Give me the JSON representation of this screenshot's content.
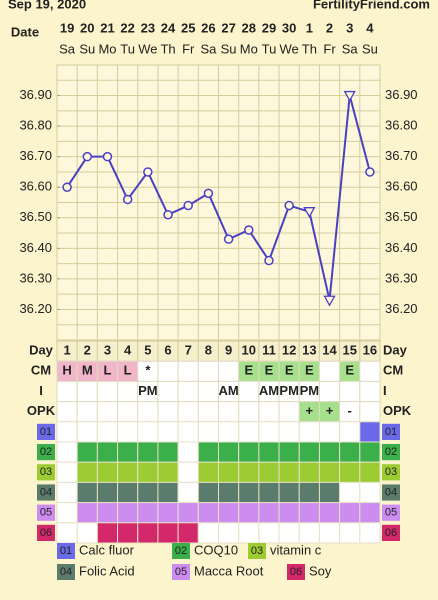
{
  "header": {
    "date": "Sep 19, 2020",
    "site": "FertilityFriend.com"
  },
  "chart_data": {
    "type": "line",
    "date_label": "Date",
    "categories": [
      "19",
      "20",
      "21",
      "22",
      "23",
      "24",
      "25",
      "26",
      "27",
      "28",
      "29",
      "30",
      "1",
      "2",
      "3",
      "4"
    ],
    "weekdays": [
      "Sa",
      "Su",
      "Mo",
      "Tu",
      "We",
      "Th",
      "Fr",
      "Sa",
      "Su",
      "Mo",
      "Tu",
      "We",
      "Th",
      "Fr",
      "Sa",
      "Su"
    ],
    "values": [
      36.6,
      36.7,
      36.7,
      36.56,
      36.65,
      36.51,
      36.54,
      36.58,
      36.43,
      36.46,
      36.36,
      36.54,
      36.52,
      36.23,
      36.9,
      36.65
    ],
    "markers": [
      "circle",
      "circle",
      "circle",
      "circle",
      "circle",
      "circle",
      "circle",
      "circle",
      "circle",
      "circle",
      "circle",
      "circle",
      "triangle",
      "triangle",
      "triangle",
      "circle"
    ],
    "color": "#4b3fc2",
    "ylim": [
      36.1,
      37.0
    ],
    "yticks": [
      {
        "value": 36.2,
        "label": "36.20"
      },
      {
        "value": 36.3,
        "label": "36.30"
      },
      {
        "value": 36.4,
        "label": "36.40"
      },
      {
        "value": 36.5,
        "label": "36.50"
      },
      {
        "value": 36.6,
        "label": "36.60"
      },
      {
        "value": 36.7,
        "label": "36.70"
      },
      {
        "value": 36.8,
        "label": "36.80"
      },
      {
        "value": 36.9,
        "label": "36.90"
      }
    ],
    "ygrid": [
      36.1,
      36.15,
      36.2,
      36.25,
      36.3,
      36.35,
      36.4,
      36.45,
      36.5,
      36.55,
      36.6,
      36.65,
      36.7,
      36.75,
      36.8,
      36.85,
      36.9,
      36.95,
      37.0
    ],
    "grid": true
  },
  "day_table": {
    "day_label": "Day",
    "days": [
      1,
      2,
      3,
      4,
      5,
      6,
      7,
      8,
      9,
      10,
      11,
      12,
      13,
      14,
      15,
      16
    ],
    "rows": [
      {
        "label": "CM",
        "cells": [
          "H",
          "M",
          "L",
          "L",
          "*",
          null,
          null,
          null,
          null,
          "E",
          "E",
          "E",
          "E",
          null,
          "E",
          null
        ],
        "colors": [
          "#f2b6cb",
          "#f2b6cb",
          "#f2b6cb",
          "#f2b6cb",
          null,
          null,
          null,
          null,
          null,
          "#a6e08c",
          "#a6e08c",
          "#a6e08c",
          "#a6e08c",
          null,
          "#a6e08c",
          null
        ]
      },
      {
        "label": "I",
        "cells": [
          null,
          null,
          null,
          null,
          "PM",
          null,
          null,
          null,
          "AM",
          null,
          "AM",
          "PM",
          "PM",
          null,
          null,
          null
        ],
        "colors": [
          null,
          null,
          null,
          null,
          null,
          null,
          null,
          null,
          null,
          null,
          null,
          null,
          null,
          null,
          null,
          null
        ]
      },
      {
        "label": "OPK",
        "cells": [
          null,
          null,
          null,
          null,
          null,
          null,
          null,
          null,
          null,
          null,
          null,
          null,
          "+",
          "+",
          "-",
          null
        ],
        "colors": [
          null,
          null,
          null,
          null,
          null,
          null,
          null,
          null,
          null,
          null,
          null,
          null,
          "#a6e08c",
          "#a6e08c",
          null,
          null
        ]
      }
    ]
  },
  "supplements": [
    {
      "code": "01",
      "name": "Calc fluor",
      "color": "#6a6ae8",
      "taken": [
        0,
        0,
        0,
        0,
        0,
        0,
        0,
        0,
        0,
        0,
        0,
        0,
        0,
        0,
        0,
        1
      ]
    },
    {
      "code": "02",
      "name": "COQ10",
      "color": "#3aaf4a",
      "taken": [
        0,
        1,
        1,
        1,
        1,
        1,
        0,
        1,
        1,
        1,
        1,
        1,
        1,
        1,
        1,
        1
      ]
    },
    {
      "code": "03",
      "name": "vitamin c",
      "color": "#9ccc32",
      "taken": [
        0,
        1,
        1,
        1,
        1,
        1,
        0,
        1,
        1,
        1,
        1,
        1,
        1,
        1,
        1,
        1
      ]
    },
    {
      "code": "04",
      "name": "Folic Acid",
      "color": "#5b7c6c",
      "taken": [
        0,
        1,
        1,
        1,
        1,
        1,
        0,
        1,
        1,
        1,
        1,
        1,
        1,
        1,
        0,
        0
      ]
    },
    {
      "code": "05",
      "name": "Macca Root",
      "color": "#cc8cf0",
      "taken": [
        0,
        1,
        1,
        1,
        1,
        1,
        1,
        1,
        1,
        1,
        1,
        1,
        1,
        1,
        1,
        1
      ]
    },
    {
      "code": "06",
      "name": "Soy",
      "color": "#d3286a",
      "taken": [
        0,
        0,
        1,
        1,
        1,
        1,
        1,
        0,
        0,
        0,
        0,
        0,
        0,
        0,
        0,
        0
      ]
    }
  ]
}
